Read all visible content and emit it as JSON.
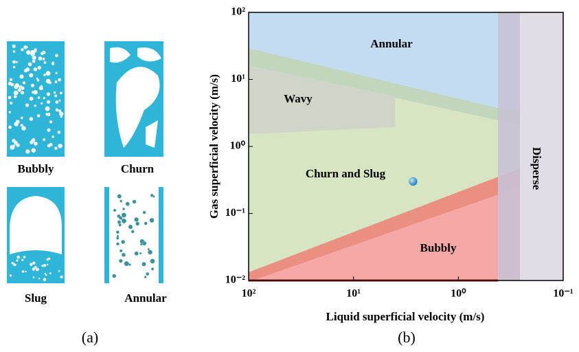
{
  "panel_a": {
    "labels": [
      "Bubbly",
      "Churn",
      "Slug",
      "Annular"
    ],
    "caption": "(a)"
  },
  "panel_b_caption": "(b)",
  "chart_data": {
    "type": "scatter",
    "xlabel": "Liquid superficial velocity (m/s)",
    "ylabel": "Gas superficial velocity (m/s)",
    "x_scale": "log",
    "y_scale": "log",
    "xlim": [
      100,
      0.1
    ],
    "ylim": [
      0.01,
      100
    ],
    "xticks": [
      {
        "value": 100,
        "label": "10²"
      },
      {
        "value": 10,
        "label": "10¹"
      },
      {
        "value": 1,
        "label": "10⁰"
      },
      {
        "value": 0.1,
        "label": "10⁻¹"
      }
    ],
    "yticks": [
      {
        "value": 0.01,
        "label": "10⁻²"
      },
      {
        "value": 0.1,
        "label": "10⁻¹"
      },
      {
        "value": 1,
        "label": "10⁰"
      },
      {
        "value": 10,
        "label": "10¹"
      },
      {
        "value": 100,
        "label": "10²"
      }
    ],
    "annotations": [
      "Annular",
      "Wavy",
      "Churn and Slug",
      "Bubbly",
      "Disperse"
    ],
    "x": [
      2.7
    ],
    "y": [
      0.3
    ],
    "color": "#3a9ed8"
  }
}
